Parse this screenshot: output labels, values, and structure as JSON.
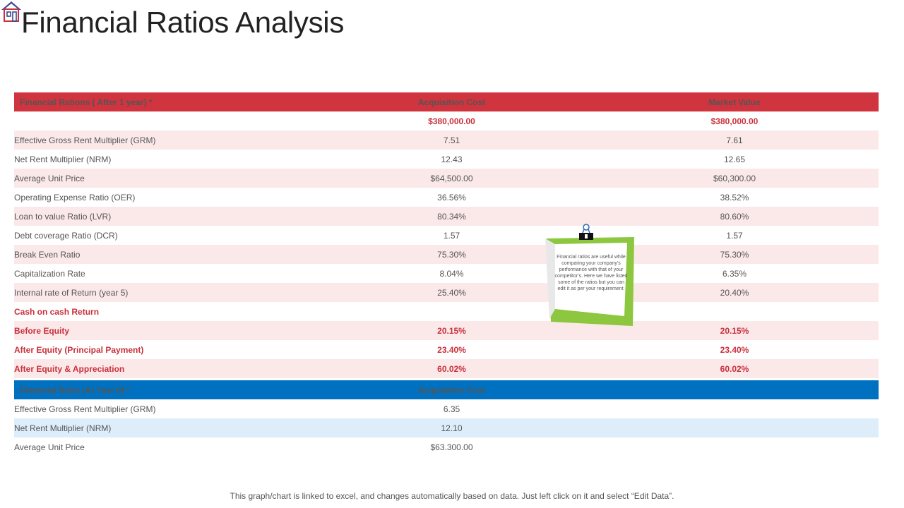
{
  "title": "Financial Ratios Analysis",
  "colors": {
    "red": "#d0343f",
    "blue": "#0070c0",
    "pink_row": "#fbe9ea",
    "blue_row": "#ddeefa"
  },
  "table1": {
    "headers": [
      "Financial Rations ( After 1 year) *",
      "Acquisition Cost",
      "Market Value"
    ],
    "rows": [
      {
        "label": "",
        "acq": "$380,000.00",
        "mkt": "$380,000.00",
        "highlight": true
      },
      {
        "label": "Effective Gross Rent Multiplier (GRM)",
        "acq": "7.51",
        "mkt": "7.61"
      },
      {
        "label": "Net Rent Multiplier (NRM)",
        "acq": "12.43",
        "mkt": "12.65"
      },
      {
        "label": "Average Unit Price",
        "acq": "$64,500.00",
        "mkt": "$60,300.00"
      },
      {
        "label": "Operating Expense Ratio (OER)",
        "acq": "36.56%",
        "mkt": "38.52%"
      },
      {
        "label": "Loan to value Ratio (LVR)",
        "acq": "80.34%",
        "mkt": "80.60%"
      },
      {
        "label": "Debt coverage Ratio (DCR)",
        "acq": "1.57",
        "mkt": "1.57"
      },
      {
        "label": "Break Even Ratio",
        "acq": "75.30%",
        "mkt": "75.30%"
      },
      {
        "label": "Capitalization Rate",
        "acq": "8.04%",
        "mkt": "6.35%"
      },
      {
        "label": "Internal rate of Return (year 5)",
        "acq": "25.40%",
        "mkt": "20.40%"
      },
      {
        "label": "Cash on cash Return",
        "acq": "",
        "mkt": "",
        "highlight": true
      },
      {
        "label": "Before Equity",
        "acq": "20.15%",
        "mkt": "20.15%",
        "highlight": true
      },
      {
        "label": "After Equity  (Principal Payment)",
        "acq": "23.40%",
        "mkt": "23.40%",
        "highlight": true
      },
      {
        "label": "After Equity  & Appreciation",
        "acq": "60.02%",
        "mkt": "60.02%",
        "highlight": true
      }
    ]
  },
  "table2": {
    "headers": [
      "Financial Ratio (At Year 0) *",
      "Acquisition Cost",
      ""
    ],
    "rows": [
      {
        "label": "Effective Gross Rent Multiplier (GRM)",
        "acq": "6.35"
      },
      {
        "label": "Net Rent Multiplier (NRM)",
        "acq": "12.10"
      },
      {
        "label": "Average Unit Price",
        "acq": "$63.300.00"
      }
    ]
  },
  "note": {
    "text": "Financial ratios are useful while comparing your company's performance with that of your competitor's. Here we have listed some of the ratios but you can edit it as per your requirement."
  },
  "footer": "This graph/chart is linked to excel,  and changes automatically based on data. Just left click on it and select “Edit Data”."
}
